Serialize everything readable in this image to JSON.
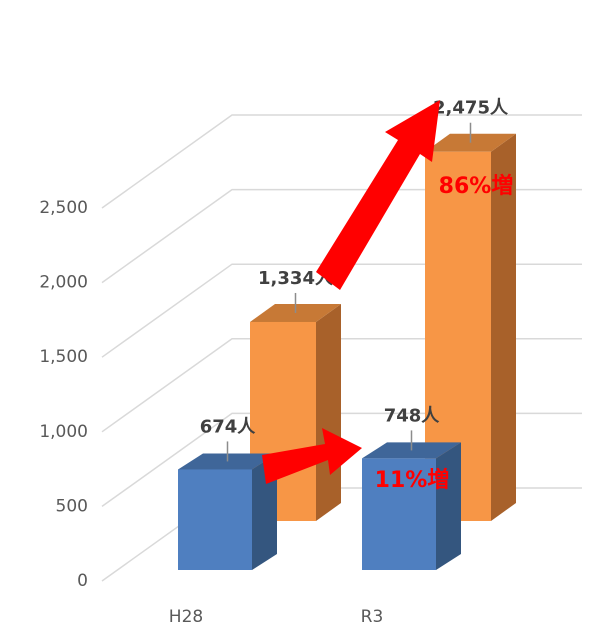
{
  "chart_data": {
    "type": "bar3d",
    "categories": [
      "H28",
      "R3"
    ],
    "series": [
      {
        "name": "blue",
        "color": "#4f7fc0",
        "side": "#34567f",
        "topc": "#3f6699",
        "values": [
          674,
          748
        ],
        "value_labels": [
          "674人",
          "748人"
        ]
      },
      {
        "name": "orange",
        "color": "#f79646",
        "side": "#a8612a",
        "topc": "#c77936",
        "values": [
          1334,
          2475
        ],
        "value_labels": [
          "1,334人",
          "2,475人"
        ]
      }
    ],
    "annotations": [
      "86%増",
      "11%増"
    ],
    "ylim": [
      0,
      2500
    ],
    "yticks": [
      0,
      {
        "value": 500,
        "label": "500"
      },
      {
        "value": 1000,
        "label": "1,000"
      },
      {
        "value": 1500,
        "label": "1,500"
      },
      {
        "value": 2000,
        "label": "2,000"
      },
      {
        "value": 2500,
        "label": "2,500"
      }
    ],
    "grid": true
  }
}
